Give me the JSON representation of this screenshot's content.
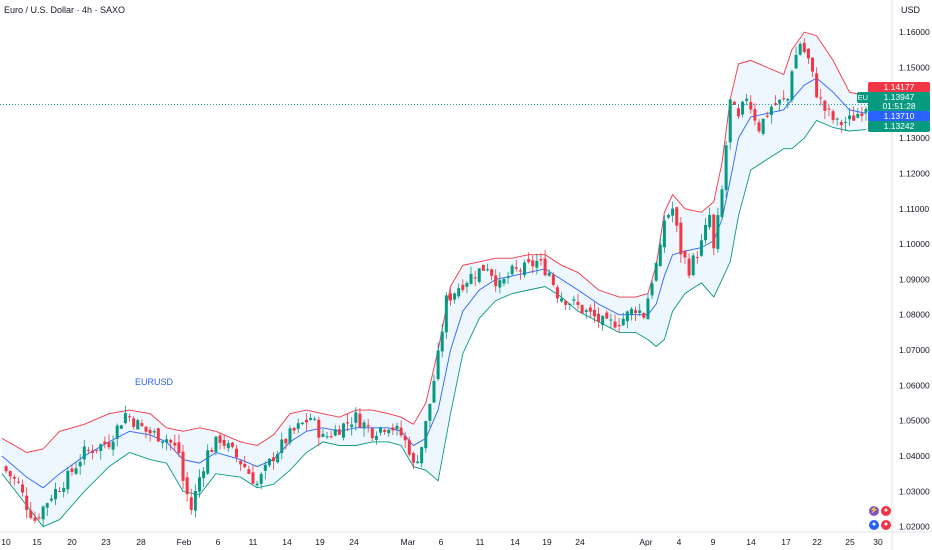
{
  "header": {
    "title": "Euro / U.S. Dollar · 4h · SAXO",
    "currency": "USD"
  },
  "indicator_label": "EURUSD",
  "price_tags": {
    "upper_band": "1.14177",
    "ticker": "EURUSD",
    "last_price": "1.13947",
    "countdown": "01:51:28",
    "middle_band": "1.13710",
    "lower_band": "1.13242"
  },
  "colors": {
    "up": "#089981",
    "down": "#f23645",
    "upper_band": "#f23645",
    "lower_band": "#089981",
    "middle_band": "#2962ff",
    "band_fill": "#e3f2fd"
  },
  "chart_data": {
    "type": "candlestick",
    "timeframe": "4h",
    "ylim": [
      1.0185,
      1.164
    ],
    "y_ticks": [
      "1.16000",
      "1.15000",
      "1.14000",
      "1.13000",
      "1.12000",
      "1.11000",
      "1.10000",
      "1.09000",
      "1.08000",
      "1.07000",
      "1.06000",
      "1.05000",
      "1.04000",
      "1.03000",
      "1.02000"
    ],
    "x_ticks": [
      "10",
      "15",
      "20",
      "23",
      "28",
      "Feb",
      "6",
      "11",
      "14",
      "19",
      "24",
      "Mar",
      "6",
      "11",
      "14",
      "19",
      "24",
      "Apr",
      "4",
      "9",
      "14",
      "17",
      "22",
      "25",
      "30"
    ],
    "close_path": [
      [
        0,
        1.037
      ],
      [
        4,
        1.032
      ],
      [
        6,
        1.026
      ],
      [
        8,
        1.022
      ],
      [
        12,
        1.029
      ],
      [
        16,
        1.034
      ],
      [
        20,
        1.041
      ],
      [
        26,
        1.044
      ],
      [
        30,
        1.052
      ],
      [
        35,
        1.047
      ],
      [
        40,
        1.045
      ],
      [
        43,
        1.041
      ],
      [
        44,
        1.033
      ],
      [
        46,
        1.025
      ],
      [
        48,
        1.034
      ],
      [
        50,
        1.041
      ],
      [
        53,
        1.045
      ],
      [
        56,
        1.041
      ],
      [
        59,
        1.037
      ],
      [
        62,
        1.032
      ],
      [
        66,
        1.04
      ],
      [
        70,
        1.046
      ],
      [
        73,
        1.049
      ],
      [
        75,
        1.051
      ],
      [
        78,
        1.045
      ],
      [
        82,
        1.048
      ],
      [
        86,
        1.051
      ],
      [
        90,
        1.047
      ],
      [
        94,
        1.049
      ],
      [
        97,
        1.046
      ],
      [
        99,
        1.042
      ],
      [
        100,
        1.037
      ],
      [
        102,
        1.043
      ],
      [
        104,
        1.055
      ],
      [
        106,
        1.068
      ],
      [
        108,
        1.084
      ],
      [
        111,
        1.088
      ],
      [
        114,
        1.091
      ],
      [
        118,
        1.094
      ],
      [
        121,
        1.088
      ],
      [
        124,
        1.092
      ],
      [
        127,
        1.093
      ],
      [
        130,
        1.095
      ],
      [
        133,
        1.092
      ],
      [
        135,
        1.086
      ],
      [
        139,
        1.083
      ],
      [
        143,
        1.08
      ],
      [
        147,
        1.077
      ],
      [
        151,
        1.079
      ],
      [
        154,
        1.082
      ],
      [
        156,
        1.08
      ],
      [
        158,
        1.09
      ],
      [
        160,
        1.098
      ],
      [
        161,
        1.107
      ],
      [
        163,
        1.11
      ],
      [
        165,
        1.098
      ],
      [
        167,
        1.093
      ],
      [
        170,
        1.1
      ],
      [
        172,
        1.108
      ],
      [
        173,
        1.098
      ],
      [
        175,
        1.115
      ],
      [
        176,
        1.128
      ],
      [
        177,
        1.14
      ],
      [
        179,
        1.135
      ],
      [
        181,
        1.142
      ],
      [
        184,
        1.133
      ],
      [
        187,
        1.139
      ],
      [
        191,
        1.141
      ],
      [
        192,
        1.15
      ],
      [
        194,
        1.157
      ],
      [
        196,
        1.152
      ],
      [
        198,
        1.143
      ],
      [
        200,
        1.138
      ],
      [
        203,
        1.134
      ],
      [
        206,
        1.135
      ],
      [
        208,
        1.137
      ],
      [
        210,
        1.1395
      ]
    ],
    "upper_band_path": [
      [
        0,
        1.045
      ],
      [
        6,
        1.041
      ],
      [
        10,
        1.042
      ],
      [
        14,
        1.047
      ],
      [
        20,
        1.049
      ],
      [
        26,
        1.052
      ],
      [
        31,
        1.053
      ],
      [
        36,
        1.052
      ],
      [
        40,
        1.048
      ],
      [
        44,
        1.047
      ],
      [
        48,
        1.048
      ],
      [
        52,
        1.047
      ],
      [
        58,
        1.044
      ],
      [
        62,
        1.043
      ],
      [
        66,
        1.046
      ],
      [
        70,
        1.052
      ],
      [
        74,
        1.053
      ],
      [
        78,
        1.052
      ],
      [
        82,
        1.051
      ],
      [
        86,
        1.053
      ],
      [
        90,
        1.053
      ],
      [
        94,
        1.052
      ],
      [
        97,
        1.051
      ],
      [
        100,
        1.049
      ],
      [
        103,
        1.055
      ],
      [
        106,
        1.07
      ],
      [
        109,
        1.088
      ],
      [
        112,
        1.094
      ],
      [
        116,
        1.095
      ],
      [
        120,
        1.096
      ],
      [
        124,
        1.096
      ],
      [
        128,
        1.097
      ],
      [
        132,
        1.097
      ],
      [
        136,
        1.094
      ],
      [
        140,
        1.092
      ],
      [
        145,
        1.087
      ],
      [
        150,
        1.085
      ],
      [
        154,
        1.085
      ],
      [
        157,
        1.086
      ],
      [
        159,
        1.094
      ],
      [
        161,
        1.109
      ],
      [
        163,
        1.114
      ],
      [
        166,
        1.11
      ],
      [
        170,
        1.109
      ],
      [
        173,
        1.112
      ],
      [
        175,
        1.123
      ],
      [
        177,
        1.141
      ],
      [
        179,
        1.151
      ],
      [
        182,
        1.152
      ],
      [
        186,
        1.15
      ],
      [
        190,
        1.148
      ],
      [
        192,
        1.155
      ],
      [
        195,
        1.16
      ],
      [
        198,
        1.159
      ],
      [
        202,
        1.152
      ],
      [
        206,
        1.143
      ],
      [
        210,
        1.142
      ]
    ],
    "middle_band_path": [
      [
        0,
        1.04
      ],
      [
        6,
        1.034
      ],
      [
        10,
        1.031
      ],
      [
        14,
        1.035
      ],
      [
        20,
        1.04
      ],
      [
        26,
        1.044
      ],
      [
        31,
        1.047
      ],
      [
        36,
        1.046
      ],
      [
        40,
        1.044
      ],
      [
        44,
        1.039
      ],
      [
        48,
        1.038
      ],
      [
        52,
        1.041
      ],
      [
        58,
        1.039
      ],
      [
        62,
        1.037
      ],
      [
        66,
        1.039
      ],
      [
        70,
        1.044
      ],
      [
        74,
        1.047
      ],
      [
        78,
        1.048
      ],
      [
        82,
        1.047
      ],
      [
        86,
        1.048
      ],
      [
        90,
        1.048
      ],
      [
        94,
        1.048
      ],
      [
        97,
        1.047
      ],
      [
        100,
        1.043
      ],
      [
        103,
        1.045
      ],
      [
        106,
        1.053
      ],
      [
        109,
        1.07
      ],
      [
        112,
        1.081
      ],
      [
        116,
        1.087
      ],
      [
        120,
        1.09
      ],
      [
        124,
        1.091
      ],
      [
        128,
        1.092
      ],
      [
        132,
        1.093
      ],
      [
        136,
        1.09
      ],
      [
        140,
        1.087
      ],
      [
        145,
        1.083
      ],
      [
        150,
        1.08
      ],
      [
        154,
        1.08
      ],
      [
        157,
        1.08
      ],
      [
        159,
        1.083
      ],
      [
        161,
        1.091
      ],
      [
        163,
        1.097
      ],
      [
        166,
        1.098
      ],
      [
        170,
        1.099
      ],
      [
        173,
        1.101
      ],
      [
        175,
        1.107
      ],
      [
        177,
        1.118
      ],
      [
        179,
        1.13
      ],
      [
        182,
        1.136
      ],
      [
        186,
        1.137
      ],
      [
        190,
        1.138
      ],
      [
        192,
        1.141
      ],
      [
        195,
        1.145
      ],
      [
        198,
        1.147
      ],
      [
        202,
        1.143
      ],
      [
        206,
        1.138
      ],
      [
        210,
        1.137
      ]
    ],
    "lower_band_path": [
      [
        0,
        1.035
      ],
      [
        6,
        1.026
      ],
      [
        10,
        1.02
      ],
      [
        14,
        1.022
      ],
      [
        20,
        1.03
      ],
      [
        26,
        1.037
      ],
      [
        31,
        1.041
      ],
      [
        36,
        1.039
      ],
      [
        40,
        1.038
      ],
      [
        44,
        1.03
      ],
      [
        48,
        1.029
      ],
      [
        52,
        1.035
      ],
      [
        58,
        1.034
      ],
      [
        62,
        1.031
      ],
      [
        66,
        1.032
      ],
      [
        70,
        1.036
      ],
      [
        74,
        1.041
      ],
      [
        78,
        1.044
      ],
      [
        82,
        1.043
      ],
      [
        86,
        1.043
      ],
      [
        90,
        1.044
      ],
      [
        94,
        1.044
      ],
      [
        97,
        1.043
      ],
      [
        100,
        1.037
      ],
      [
        103,
        1.036
      ],
      [
        106,
        1.033
      ],
      [
        109,
        1.052
      ],
      [
        112,
        1.069
      ],
      [
        116,
        1.079
      ],
      [
        120,
        1.084
      ],
      [
        124,
        1.086
      ],
      [
        128,
        1.087
      ],
      [
        132,
        1.088
      ],
      [
        136,
        1.085
      ],
      [
        140,
        1.081
      ],
      [
        145,
        1.078
      ],
      [
        150,
        1.075
      ],
      [
        154,
        1.075
      ],
      [
        157,
        1.073
      ],
      [
        159,
        1.071
      ],
      [
        161,
        1.073
      ],
      [
        163,
        1.081
      ],
      [
        166,
        1.086
      ],
      [
        170,
        1.089
      ],
      [
        173,
        1.085
      ],
      [
        175,
        1.09
      ],
      [
        177,
        1.095
      ],
      [
        179,
        1.108
      ],
      [
        182,
        1.121
      ],
      [
        186,
        1.124
      ],
      [
        190,
        1.127
      ],
      [
        192,
        1.127
      ],
      [
        195,
        1.13
      ],
      [
        198,
        1.135
      ],
      [
        202,
        1.133
      ],
      [
        206,
        1.132
      ],
      [
        210,
        1.1324
      ]
    ]
  }
}
